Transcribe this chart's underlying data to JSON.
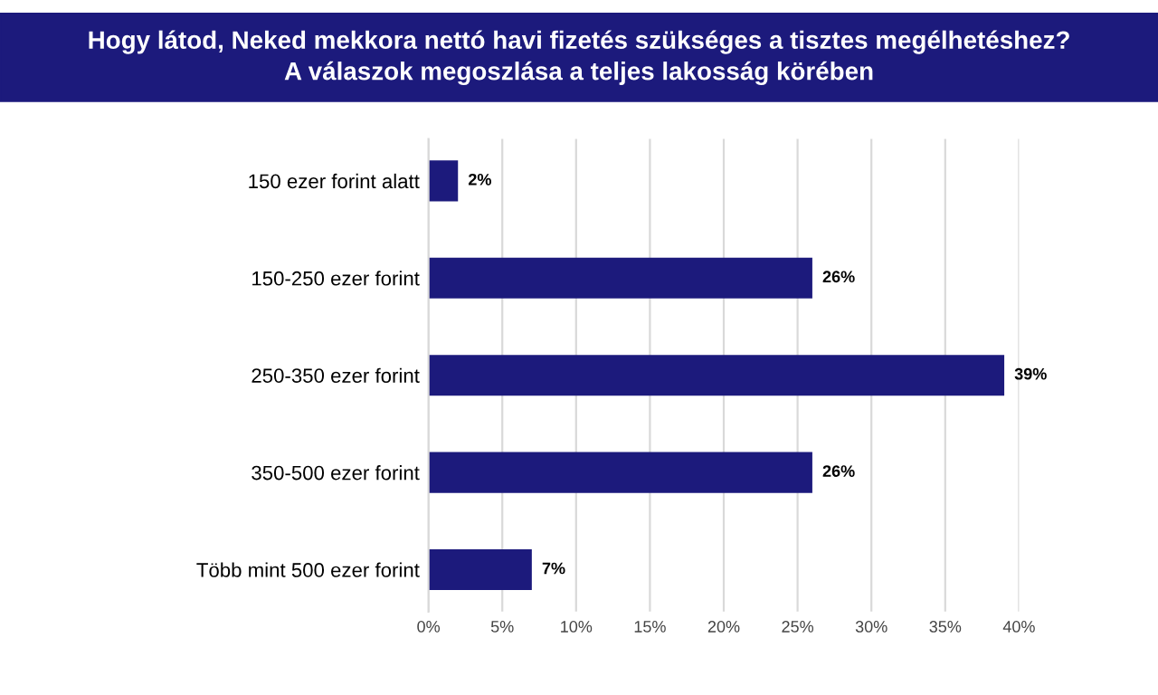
{
  "chart_data": {
    "type": "bar",
    "orientation": "horizontal",
    "title": "Hogy látod, Neked mekkora nettó havi fizetés szükséges a tisztes megélhetéshez?\nA válaszok megoszlása a teljes lakosság körében",
    "categories": [
      "150 ezer forint alatt",
      "150-250 ezer forint",
      "250-350 ezer forint",
      "350-500 ezer forint",
      "Több mint 500 ezer forint"
    ],
    "values": [
      2,
      26,
      39,
      26,
      7
    ],
    "value_labels": [
      "2%",
      "26%",
      "39%",
      "26%",
      "7%"
    ],
    "color": "#1c1a7c",
    "xlim": [
      0,
      40
    ],
    "xticks": [
      {
        "value": 0,
        "label": "0%"
      },
      {
        "value": 5,
        "label": "5%"
      },
      {
        "value": 10,
        "label": "10%"
      },
      {
        "value": 15,
        "label": "15%"
      },
      {
        "value": 20,
        "label": "20%"
      },
      {
        "value": 25,
        "label": "25%"
      },
      {
        "value": 30,
        "label": "30%"
      },
      {
        "value": 35,
        "label": "35%"
      },
      {
        "value": 40,
        "label": "40%"
      }
    ],
    "grid": "x"
  }
}
